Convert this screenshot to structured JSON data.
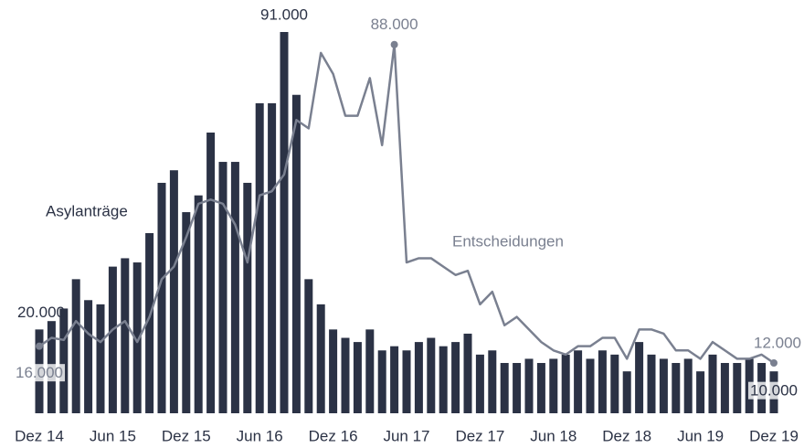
{
  "chart_data": {
    "type": "bar_line",
    "annotations": [
      "Asylanträge",
      "Entscheidungen"
    ],
    "categories": [
      "Dez 14",
      null,
      null,
      null,
      null,
      null,
      "Jun 15",
      null,
      null,
      null,
      null,
      null,
      "Dez 15",
      null,
      null,
      null,
      null,
      null,
      "Jun 16",
      null,
      null,
      null,
      null,
      null,
      "Dez 16",
      null,
      null,
      null,
      null,
      null,
      "Jun 17",
      null,
      null,
      null,
      null,
      null,
      "Dez 17",
      null,
      null,
      null,
      null,
      null,
      "Jun 18",
      null,
      null,
      null,
      null,
      null,
      "Dez 18",
      null,
      null,
      null,
      null,
      null,
      "Jun 19",
      null,
      null,
      null,
      null,
      null,
      "Dez 19"
    ],
    "series": [
      {
        "name": "Asylanträge",
        "type": "bar",
        "color": "#2b3245",
        "values": [
          20000,
          22000,
          25000,
          32000,
          27000,
          26000,
          35000,
          37000,
          36000,
          43000,
          55000,
          58000,
          48000,
          52000,
          67000,
          60000,
          60000,
          55000,
          74000,
          74000,
          91000,
          76000,
          32000,
          26000,
          20000,
          18000,
          17000,
          20000,
          15000,
          16000,
          15000,
          17000,
          18000,
          16000,
          17000,
          19000,
          14000,
          15000,
          12000,
          12000,
          13000,
          12000,
          13000,
          14000,
          15000,
          13000,
          15000,
          14000,
          10000,
          17000,
          14000,
          13000,
          12000,
          13000,
          10000,
          14000,
          12000,
          12000,
          13000,
          12000,
          10000
        ],
        "value_labels": [
          "20.000",
          null,
          null,
          null,
          null,
          null,
          null,
          null,
          null,
          null,
          null,
          null,
          null,
          null,
          null,
          null,
          null,
          null,
          null,
          null,
          "91.000",
          null,
          null,
          null,
          null,
          null,
          null,
          null,
          null,
          null,
          null,
          null,
          null,
          null,
          null,
          null,
          null,
          null,
          null,
          null,
          null,
          null,
          null,
          null,
          null,
          null,
          null,
          null,
          null,
          null,
          null,
          null,
          null,
          null,
          null,
          null,
          null,
          null,
          null,
          null,
          "10.000"
        ]
      },
      {
        "name": "Entscheidungen",
        "type": "line",
        "color": "#7a8090",
        "values": [
          16000,
          18000,
          17500,
          22000,
          19000,
          17000,
          20000,
          22000,
          17000,
          23000,
          32000,
          35000,
          42000,
          50000,
          51000,
          50000,
          45000,
          36000,
          52000,
          53000,
          57000,
          70000,
          68000,
          86000,
          81000,
          71000,
          71000,
          80000,
          64000,
          88000,
          36000,
          37000,
          37000,
          35000,
          33000,
          34000,
          26000,
          29000,
          21000,
          23000,
          20000,
          17000,
          15000,
          14000,
          16000,
          16000,
          18000,
          18000,
          13000,
          20000,
          20000,
          19000,
          15000,
          15000,
          13000,
          17000,
          15000,
          13000,
          13000,
          14000,
          12000
        ],
        "value_labels": [
          "16.000",
          null,
          null,
          null,
          null,
          null,
          null,
          null,
          null,
          null,
          null,
          null,
          null,
          null,
          null,
          null,
          null,
          null,
          null,
          null,
          null,
          null,
          null,
          null,
          null,
          null,
          null,
          null,
          null,
          "88.000",
          null,
          null,
          null,
          null,
          null,
          null,
          null,
          null,
          null,
          null,
          null,
          null,
          null,
          null,
          null,
          null,
          null,
          null,
          null,
          null,
          null,
          null,
          null,
          null,
          null,
          null,
          null,
          null,
          null,
          null,
          "12.000"
        ]
      }
    ],
    "ylim": [
      0,
      91000
    ]
  }
}
